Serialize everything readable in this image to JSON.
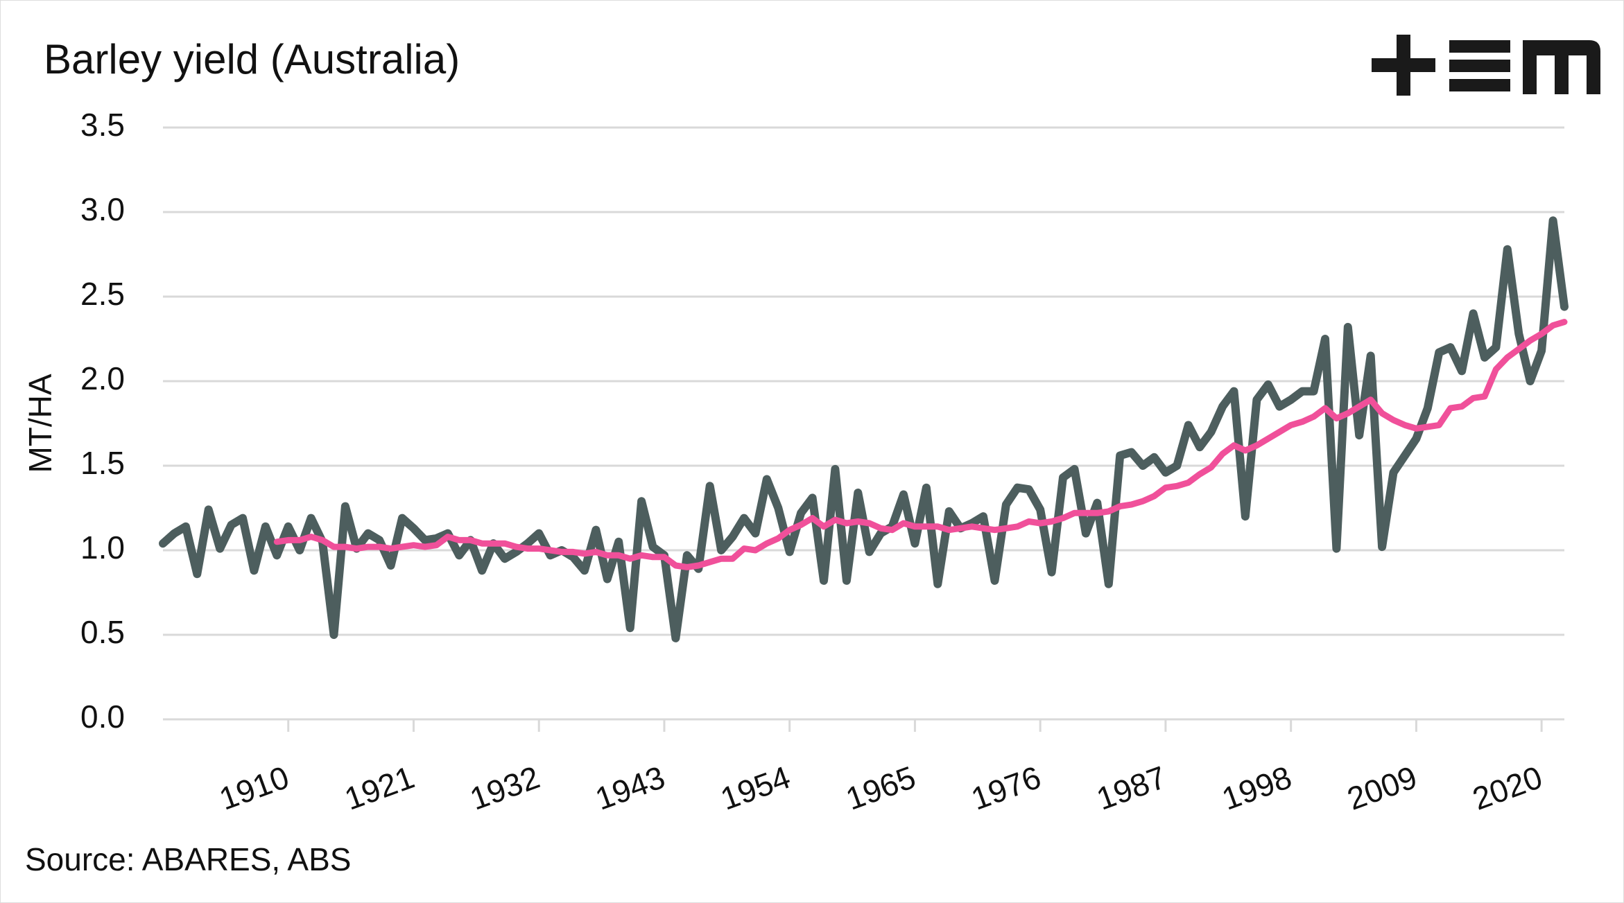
{
  "chart_data": {
    "type": "line",
    "title": "Barley yield (Australia)",
    "y_label": "MT/HA",
    "source": "Source: ABARES, ABS",
    "x": [
      1899,
      1900,
      1901,
      1902,
      1903,
      1904,
      1905,
      1906,
      1907,
      1908,
      1909,
      1910,
      1911,
      1912,
      1913,
      1914,
      1915,
      1916,
      1917,
      1918,
      1919,
      1920,
      1921,
      1922,
      1923,
      1924,
      1925,
      1926,
      1927,
      1928,
      1929,
      1930,
      1931,
      1932,
      1933,
      1934,
      1935,
      1936,
      1937,
      1938,
      1939,
      1940,
      1941,
      1942,
      1943,
      1944,
      1945,
      1946,
      1947,
      1948,
      1949,
      1950,
      1951,
      1952,
      1953,
      1954,
      1955,
      1956,
      1957,
      1958,
      1959,
      1960,
      1961,
      1962,
      1963,
      1964,
      1965,
      1966,
      1967,
      1968,
      1969,
      1970,
      1971,
      1972,
      1973,
      1974,
      1975,
      1976,
      1977,
      1978,
      1979,
      1980,
      1981,
      1982,
      1983,
      1984,
      1985,
      1986,
      1987,
      1988,
      1989,
      1990,
      1991,
      1992,
      1993,
      1994,
      1995,
      1996,
      1997,
      1998,
      1999,
      2000,
      2001,
      2002,
      2003,
      2004,
      2005,
      2006,
      2007,
      2008,
      2009,
      2010,
      2011,
      2012,
      2013,
      2014,
      2015,
      2016,
      2017,
      2018,
      2019,
      2020,
      2021,
      2022
    ],
    "series": [
      {
        "color": "#4d5e5e",
        "values": [
          1.04,
          1.1,
          1.14,
          0.86,
          1.24,
          1.01,
          1.15,
          1.19,
          0.88,
          1.14,
          0.97,
          1.14,
          1.0,
          1.19,
          1.05,
          0.5,
          1.26,
          1.01,
          1.1,
          1.06,
          0.91,
          1.19,
          1.13,
          1.06,
          1.07,
          1.1,
          0.97,
          1.06,
          0.88,
          1.04,
          0.95,
          0.99,
          1.04,
          1.1,
          0.97,
          1.0,
          0.96,
          0.88,
          1.12,
          0.83,
          1.05,
          0.54,
          1.29,
          1.02,
          0.97,
          0.48,
          0.97,
          0.89,
          1.38,
          1.0,
          1.08,
          1.19,
          1.1,
          1.42,
          1.25,
          0.99,
          1.22,
          1.31,
          0.82,
          1.48,
          0.82,
          1.34,
          0.99,
          1.1,
          1.14,
          1.33,
          1.04,
          1.37,
          0.8,
          1.23,
          1.13,
          1.16,
          1.2,
          0.82,
          1.27,
          1.37,
          1.36,
          1.24,
          0.87,
          1.43,
          1.48,
          1.1,
          1.28,
          0.8,
          1.56,
          1.58,
          1.5,
          1.55,
          1.46,
          1.5,
          1.74,
          1.61,
          1.7,
          1.85,
          1.94,
          1.2,
          1.89,
          1.98,
          1.85,
          1.89,
          1.94,
          1.94,
          2.25,
          1.01,
          2.32,
          1.68,
          2.15,
          1.02,
          1.46,
          1.56,
          1.66,
          1.84,
          2.17,
          2.2,
          2.06,
          2.4,
          2.14,
          2.2,
          2.78,
          2.28,
          2.0,
          2.18,
          2.95,
          2.44
        ]
      },
      {
        "color": "#f0509a",
        "values": [
          null,
          null,
          null,
          null,
          null,
          null,
          null,
          null,
          null,
          null,
          1.05,
          1.06,
          1.06,
          1.08,
          1.06,
          1.02,
          1.02,
          1.01,
          1.02,
          1.02,
          1.01,
          1.02,
          1.03,
          1.02,
          1.03,
          1.08,
          1.06,
          1.06,
          1.04,
          1.04,
          1.04,
          1.02,
          1.01,
          1.01,
          1.0,
          0.99,
          0.99,
          0.98,
          0.99,
          0.97,
          0.97,
          0.95,
          0.97,
          0.96,
          0.96,
          0.91,
          0.9,
          0.91,
          0.93,
          0.95,
          0.95,
          1.01,
          1.0,
          1.04,
          1.07,
          1.12,
          1.15,
          1.19,
          1.14,
          1.18,
          1.16,
          1.17,
          1.16,
          1.13,
          1.12,
          1.16,
          1.14,
          1.14,
          1.14,
          1.12,
          1.13,
          1.14,
          1.13,
          1.12,
          1.13,
          1.14,
          1.17,
          1.16,
          1.17,
          1.19,
          1.22,
          1.22,
          1.22,
          1.23,
          1.26,
          1.27,
          1.29,
          1.32,
          1.37,
          1.38,
          1.4,
          1.45,
          1.49,
          1.57,
          1.62,
          1.59,
          1.62,
          1.66,
          1.7,
          1.74,
          1.76,
          1.79,
          1.84,
          1.78,
          1.81,
          1.85,
          1.89,
          1.81,
          1.77,
          1.74,
          1.72,
          1.73,
          1.74,
          1.84,
          1.85,
          1.9,
          1.91,
          2.07,
          2.14,
          2.19,
          2.24,
          2.28,
          2.33,
          2.35
        ]
      }
    ],
    "xlim": [
      1899,
      2022
    ],
    "xticks": [
      1910,
      1921,
      1932,
      1943,
      1954,
      1965,
      1976,
      1987,
      1998,
      2009,
      2020
    ],
    "ylim": [
      0,
      3.5
    ],
    "yticks": [
      {
        "value": 0,
        "label": "0.0"
      },
      0.5,
      {
        "value": 1,
        "label": "1.0"
      },
      1.5,
      {
        "value": 2,
        "label": "2.0"
      },
      2.5,
      {
        "value": 3,
        "label": "3.0"
      },
      3.5
    ],
    "grid": true
  }
}
